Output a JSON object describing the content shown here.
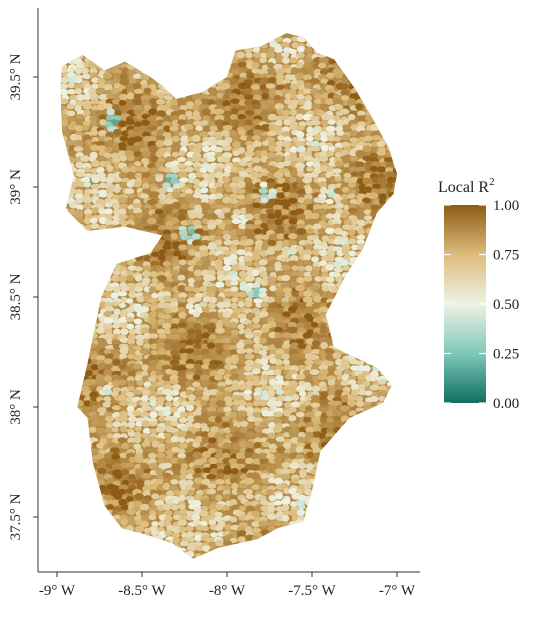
{
  "chart_data": {
    "type": "heatmap",
    "title": "",
    "xlabel": "",
    "ylabel": "",
    "xlim": [
      -9.05,
      -6.95
    ],
    "ylim": [
      37.3,
      39.75
    ],
    "x_ticks": [
      {
        "value": -9,
        "label": "-9° W"
      },
      {
        "value": -8.5,
        "label": "-8.5° W"
      },
      {
        "value": -8,
        "label": "-8° W"
      },
      {
        "value": -7.5,
        "label": "-7.5° W"
      },
      {
        "value": -7,
        "label": "-7° W"
      }
    ],
    "y_ticks": [
      {
        "value": 37.5,
        "label": "37.5° N"
      },
      {
        "value": 38,
        "label": "38° N"
      },
      {
        "value": 38.5,
        "label": "38.5° N"
      },
      {
        "value": 39,
        "label": "39° N"
      },
      {
        "value": 39.5,
        "label": "39.5° N"
      }
    ],
    "grid": false,
    "legend": {
      "title": "Local R",
      "title_superscript": "2",
      "placement": "right",
      "range": [
        0,
        1
      ],
      "ticks": [
        {
          "value": 1.0,
          "label": "1.00"
        },
        {
          "value": 0.75,
          "label": "0.75"
        },
        {
          "value": 0.5,
          "label": "0.50"
        },
        {
          "value": 0.25,
          "label": "0.25"
        },
        {
          "value": 0.0,
          "label": "0.00"
        }
      ]
    },
    "color_scale": [
      {
        "value": 0.0,
        "color": "#0f6f5f"
      },
      {
        "value": 0.25,
        "color": "#7fc7ba"
      },
      {
        "value": 0.5,
        "color": "#eef2e4"
      },
      {
        "value": 0.75,
        "color": "#dcbc7c"
      },
      {
        "value": 1.0,
        "color": "#8e5b14"
      }
    ],
    "region_outline": [
      [
        -8.97,
        39.55
      ],
      [
        -8.85,
        39.6
      ],
      [
        -8.72,
        39.53
      ],
      [
        -8.6,
        39.57
      ],
      [
        -8.45,
        39.5
      ],
      [
        -8.38,
        39.46
      ],
      [
        -8.3,
        39.4
      ],
      [
        -8.15,
        39.43
      ],
      [
        -8.0,
        39.5
      ],
      [
        -7.95,
        39.62
      ],
      [
        -7.8,
        39.64
      ],
      [
        -7.65,
        39.7
      ],
      [
        -7.55,
        39.68
      ],
      [
        -7.47,
        39.61
      ],
      [
        -7.37,
        39.58
      ],
      [
        -7.25,
        39.45
      ],
      [
        -7.15,
        39.32
      ],
      [
        -7.05,
        39.18
      ],
      [
        -7.0,
        39.06
      ],
      [
        -7.02,
        38.97
      ],
      [
        -7.12,
        38.88
      ],
      [
        -7.2,
        38.72
      ],
      [
        -7.3,
        38.6
      ],
      [
        -7.42,
        38.42
      ],
      [
        -7.37,
        38.27
      ],
      [
        -7.12,
        38.18
      ],
      [
        -7.03,
        38.1
      ],
      [
        -7.08,
        38.02
      ],
      [
        -7.28,
        37.95
      ],
      [
        -7.45,
        37.8
      ],
      [
        -7.5,
        37.62
      ],
      [
        -7.55,
        37.48
      ],
      [
        -7.7,
        37.45
      ],
      [
        -7.82,
        37.4
      ],
      [
        -8.05,
        37.36
      ],
      [
        -8.2,
        37.31
      ],
      [
        -8.32,
        37.38
      ],
      [
        -8.48,
        37.42
      ],
      [
        -8.62,
        37.45
      ],
      [
        -8.72,
        37.55
      ],
      [
        -8.79,
        37.75
      ],
      [
        -8.82,
        37.95
      ],
      [
        -8.88,
        38.0
      ],
      [
        -8.82,
        38.2
      ],
      [
        -8.74,
        38.5
      ],
      [
        -8.65,
        38.65
      ],
      [
        -8.45,
        38.7
      ],
      [
        -8.38,
        38.78
      ],
      [
        -8.6,
        38.82
      ],
      [
        -8.82,
        38.8
      ],
      [
        -8.95,
        38.9
      ],
      [
        -8.9,
        39.05
      ],
      [
        -8.97,
        39.25
      ],
      [
        -8.98,
        39.45
      ]
    ],
    "low_value_spots": [
      {
        "lon": -8.67,
        "lat": 39.3,
        "value": 0.1
      },
      {
        "lon": -8.33,
        "lat": 39.03,
        "value": 0.15
      },
      {
        "lon": -8.22,
        "lat": 38.79,
        "value": 0.12
      },
      {
        "lon": -7.92,
        "lat": 38.85,
        "value": 0.35
      },
      {
        "lon": -7.77,
        "lat": 38.97,
        "value": 0.2
      },
      {
        "lon": -7.4,
        "lat": 38.96,
        "value": 0.3
      },
      {
        "lon": -8.84,
        "lat": 38.75,
        "value": 0.35
      },
      {
        "lon": -7.83,
        "lat": 38.52,
        "value": 0.2
      },
      {
        "lon": -8.19,
        "lat": 38.45,
        "value": 0.35
      },
      {
        "lon": -8.7,
        "lat": 38.07,
        "value": 0.4
      },
      {
        "lon": -8.25,
        "lat": 37.92,
        "value": 0.45
      },
      {
        "lon": -8.05,
        "lat": 37.42,
        "value": 0.4
      },
      {
        "lon": -7.55,
        "lat": 38.05,
        "value": 0.45
      },
      {
        "lon": -7.62,
        "lat": 38.7,
        "value": 0.4
      },
      {
        "lon": -8.5,
        "lat": 38.58,
        "value": 0.45
      }
    ]
  }
}
